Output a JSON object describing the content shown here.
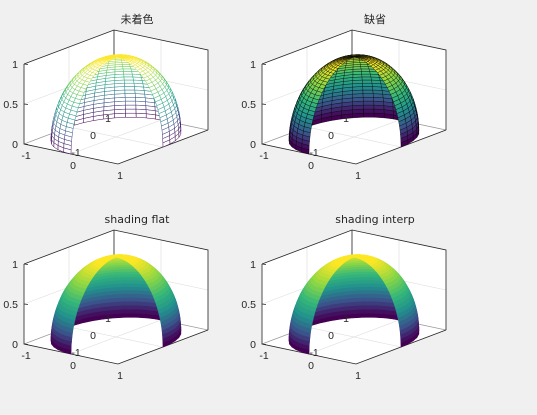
{
  "colormap": [
    "#440154",
    "#3b518b",
    "#21908d",
    "#35b779",
    "#8fd744",
    "#fde725"
  ],
  "colors": {
    "figure_bg": "#f0f0f0",
    "axes_bg": "#ffffff",
    "axis": "#262626",
    "grid": "#dcdcdc",
    "wireframe": "#000000"
  },
  "chart_data": [
    {
      "type": "surface",
      "shape": "hemisphere with one quarter removed",
      "title": "未着色",
      "shading": "none (mesh points only)",
      "edge": "colored mesh",
      "xlim": [
        -1,
        1
      ],
      "ylim": [
        -1,
        1
      ],
      "zlim": [
        0,
        1
      ],
      "xticks": [
        "-1",
        "0",
        "1"
      ],
      "yticks": [
        "-1",
        "0",
        "1"
      ],
      "zticks": [
        "0",
        "0.5",
        "1"
      ],
      "grid": true
    },
    {
      "type": "surface",
      "shape": "hemisphere with one quarter removed",
      "title": "缺省",
      "shading": "faceted",
      "edge": "black",
      "xlim": [
        -1,
        1
      ],
      "ylim": [
        -1,
        1
      ],
      "zlim": [
        0,
        1
      ],
      "xticks": [
        "-1",
        "0",
        "1"
      ],
      "yticks": [
        "-1",
        "0",
        "1"
      ],
      "zticks": [
        "0",
        "0.5",
        "1"
      ],
      "grid": true
    },
    {
      "type": "surface",
      "shape": "hemisphere with one quarter removed",
      "title": "shading flat",
      "shading": "flat",
      "edge": "none",
      "xlim": [
        -1,
        1
      ],
      "ylim": [
        -1,
        1
      ],
      "zlim": [
        0,
        1
      ],
      "xticks": [
        "-1",
        "0",
        "1"
      ],
      "yticks": [
        "-1",
        "0",
        "1"
      ],
      "zticks": [
        "0",
        "0.5",
        "1"
      ],
      "grid": true
    },
    {
      "type": "surface",
      "shape": "hemisphere with one quarter removed",
      "title": "shading interp",
      "shading": "interp",
      "edge": "none",
      "xlim": [
        -1,
        1
      ],
      "ylim": [
        -1,
        1
      ],
      "zlim": [
        0,
        1
      ],
      "xticks": [
        "-1",
        "0",
        "1"
      ],
      "yticks": [
        "-1",
        "0",
        "1"
      ],
      "zticks": [
        "0",
        "0.5",
        "1"
      ],
      "grid": true
    }
  ]
}
